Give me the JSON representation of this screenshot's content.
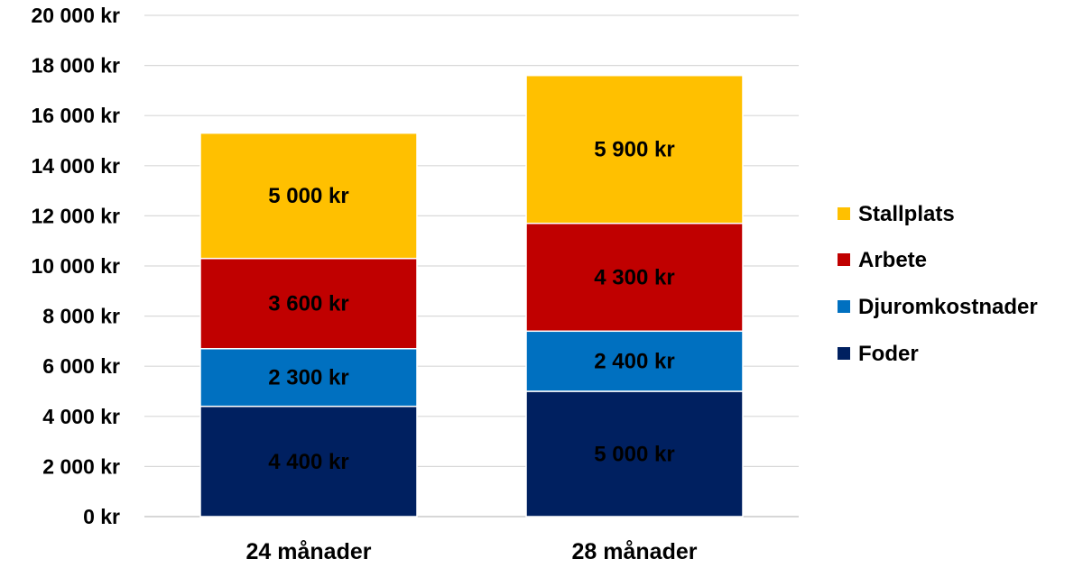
{
  "chart_data": {
    "type": "bar",
    "stacked": true,
    "title": "",
    "xlabel": "",
    "ylabel": "",
    "categories": [
      "24 månader",
      "28 månader"
    ],
    "ylim": [
      0,
      20000
    ],
    "ytick_step": 2000,
    "y_tick_labels": [
      "0 kr",
      "2 000 kr",
      "4 000 kr",
      "6 000 kr",
      "8 000 kr",
      "10 000 kr",
      "12 000 kr",
      "14 000 kr",
      "16 000 kr",
      "18 000 kr",
      "20 000 kr"
    ],
    "grid": true,
    "legend_position": "right",
    "series": [
      {
        "name": "Foder",
        "color": "#002060",
        "label_color": "#000000",
        "values": [
          4400,
          5000
        ],
        "labels": [
          "4 400 kr",
          "5 000 kr"
        ]
      },
      {
        "name": "Djuromkostnader",
        "color": "#0070C0",
        "label_color": "#000000",
        "values": [
          2300,
          2400
        ],
        "labels": [
          "2 300 kr",
          "2 400 kr"
        ]
      },
      {
        "name": "Arbete",
        "color": "#C00000",
        "label_color": "#000000",
        "values": [
          3600,
          4300
        ],
        "labels": [
          "3 600 kr",
          "4 300 kr"
        ]
      },
      {
        "name": "Stallplats",
        "color": "#FFC000",
        "label_color": "#000000",
        "values": [
          5000,
          5900
        ],
        "labels": [
          "5 000 kr",
          "5 900 kr"
        ]
      }
    ],
    "legend_order": [
      "Stallplats",
      "Arbete",
      "Djuromkostnader",
      "Foder"
    ]
  }
}
